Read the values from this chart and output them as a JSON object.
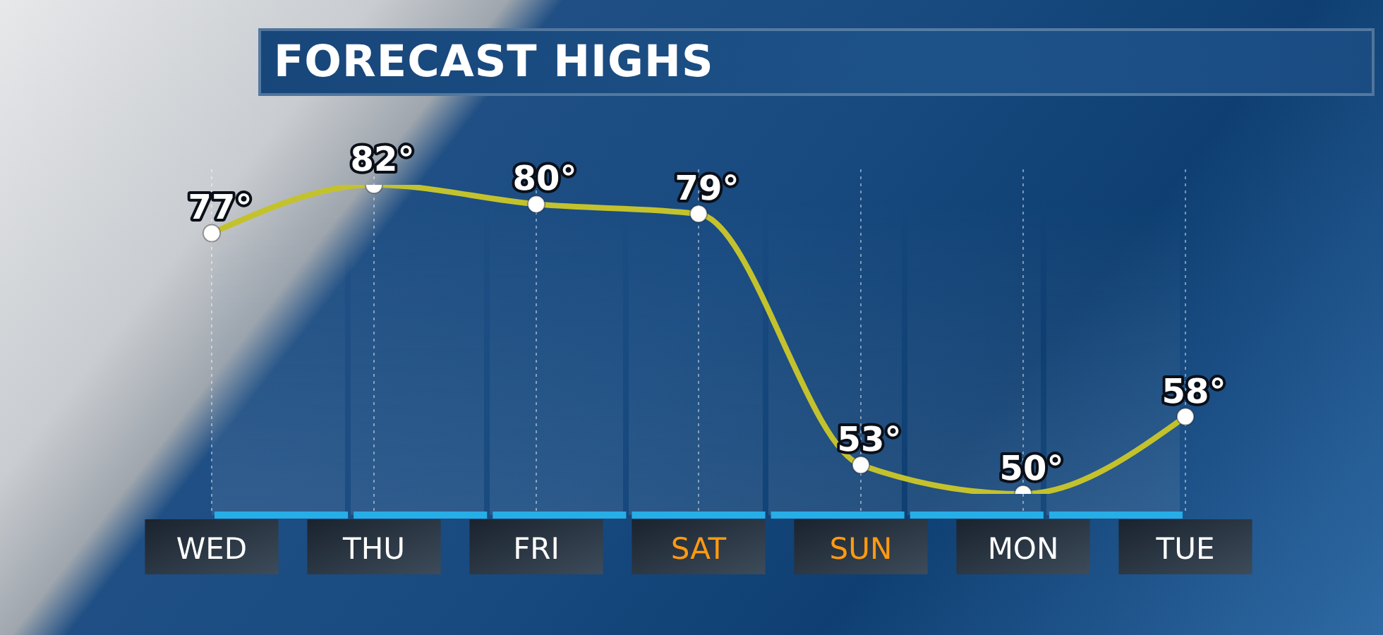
{
  "chart_data": {
    "type": "line",
    "title": "FORECAST HIGHS",
    "categories": [
      "WED",
      "THU",
      "FRI",
      "SAT",
      "SUN",
      "MON",
      "TUE"
    ],
    "values": [
      77,
      82,
      80,
      79,
      53,
      50,
      58
    ],
    "color": "#c4c22c",
    "value_labels": [
      "77°",
      "82°",
      "80°",
      "79°",
      "53°",
      "50°",
      "58°"
    ],
    "marker": "circle",
    "grid": "x"
  }
}
